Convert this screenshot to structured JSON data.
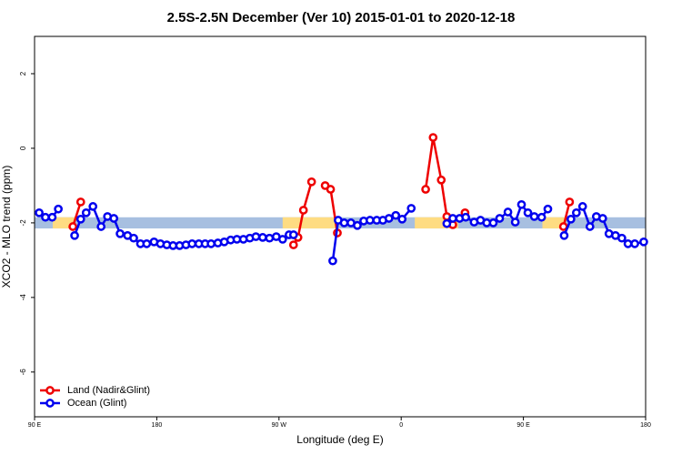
{
  "chart_data": {
    "type": "line",
    "title": "2.5S-2.5N December (Ver 10)   2015-01-01 to 2020-12-18",
    "x_label": "Longitude (deg E)",
    "y_label": "XCO2 - MLO trend (ppm)",
    "xlim": [
      90,
      540
    ],
    "ylim": [
      -7.2,
      3
    ],
    "xticks": [
      {
        "value": 90,
        "label": "90 E"
      },
      180,
      {
        "value": 270,
        "label": "90 W"
      },
      {
        "value": 360,
        "label": "0"
      },
      {
        "value": 450,
        "label": "90 E"
      },
      {
        "value": 540,
        "label": "180"
      }
    ],
    "yticks": [
      2,
      0,
      -2,
      -4,
      -6
    ],
    "legend": "bottom-left",
    "reference_band": {
      "range": [
        -2.15,
        -1.85
      ],
      "color": "#a7bfe0",
      "land_color": "#fedc82",
      "land_spans": [
        [
          103.4,
          119.5
        ],
        [
          272.7,
          313
        ],
        [
          370,
          402
        ],
        [
          464,
          481
        ]
      ]
    },
    "series": [
      {
        "name": "Land (Nadir&Glint)",
        "color": "#ee0000",
        "x": [
          118.2,
          124,
          null,
          280.7,
          284,
          288,
          294,
          null,
          304,
          308,
          313,
          null,
          378,
          383.5,
          389.5,
          393.6,
          398,
          null,
          407,
          null,
          479.5,
          484
        ],
        "values": [
          -2.1,
          -1.44,
          null,
          -2.59,
          -2.39,
          -1.66,
          -0.9,
          null,
          -1.0,
          -1.1,
          -2.27,
          null,
          -1.1,
          0.29,
          -0.85,
          -1.83,
          -2.05,
          null,
          -1.73,
          null,
          -2.1,
          -1.44
        ]
      },
      {
        "name": "Ocean (Glint)",
        "color": "#0000ee",
        "x": [
          93.4,
          98,
          103,
          107.5,
          null,
          119.5,
          124,
          128,
          133,
          139,
          143.7,
          148.4,
          153,
          158.5,
          163,
          168,
          172.6,
          178,
          182.7,
          187.4,
          192,
          196.8,
          201.5,
          206,
          211,
          215.6,
          220,
          225,
          229.7,
          234.4,
          239,
          243.8,
          248.5,
          253,
          258,
          263,
          268,
          272.7,
          277.4,
          280.7,
          null,
          309.6,
          313.6,
          318,
          323,
          327.7,
          332.4,
          337,
          342,
          346.5,
          351,
          356,
          360.7,
          367.4,
          null,
          393.6,
          398,
          403,
          407.5,
          413.7,
          418.4,
          423,
          427.8,
          432.5,
          438.6,
          444,
          448.6,
          453.3,
          458,
          463.4,
          468,
          null,
          480,
          485,
          489,
          493.6,
          499,
          503.7,
          508.4,
          513,
          517.8,
          522.5,
          527,
          532,
          538.6
        ],
        "values": [
          -1.73,
          -1.85,
          -1.85,
          -1.63,
          null,
          -2.34,
          -1.9,
          -1.73,
          -1.56,
          -2.1,
          -1.83,
          -1.88,
          -2.29,
          -2.34,
          -2.41,
          -2.56,
          -2.56,
          -2.51,
          -2.56,
          -2.59,
          -2.61,
          -2.61,
          -2.59,
          -2.56,
          -2.56,
          -2.56,
          -2.56,
          -2.54,
          -2.51,
          -2.46,
          -2.44,
          -2.44,
          -2.41,
          -2.37,
          -2.39,
          -2.41,
          -2.37,
          -2.44,
          -2.32,
          -2.32,
          null,
          -3.02,
          -1.93,
          -2.0,
          -2.0,
          -2.07,
          -1.95,
          -1.93,
          -1.93,
          -1.93,
          -1.88,
          -1.8,
          -1.9,
          -1.61,
          null,
          -2.02,
          -1.88,
          -1.88,
          -1.85,
          -1.98,
          -1.93,
          -2.0,
          -2.0,
          -1.88,
          -1.71,
          -1.98,
          -1.51,
          -1.73,
          -1.83,
          -1.85,
          -1.63,
          null,
          -2.34,
          -1.9,
          -1.73,
          -1.56,
          -2.1,
          -1.83,
          -1.88,
          -2.29,
          -2.34,
          -2.41,
          -2.56,
          -2.56,
          -2.51
        ]
      }
    ]
  }
}
